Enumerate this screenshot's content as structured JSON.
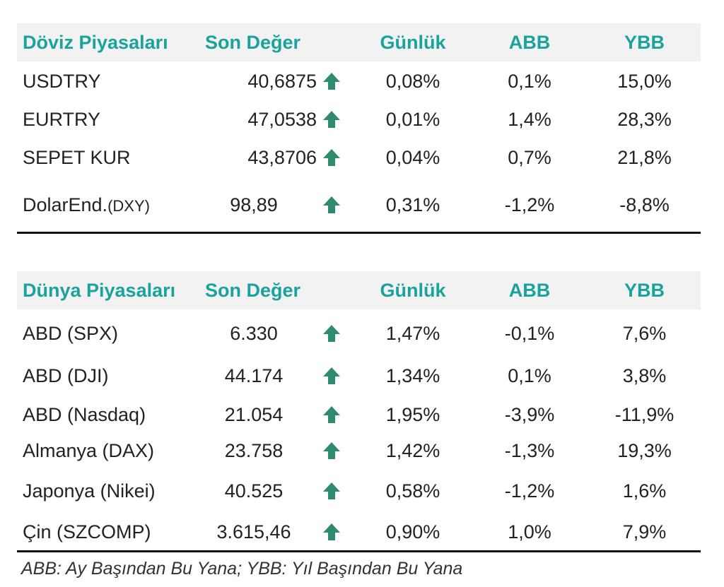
{
  "fx": {
    "headers": {
      "name": "Döviz Piyasaları",
      "value": "Son Değer",
      "daily": "Günlük",
      "abb": "ABB",
      "ybb": "YBB"
    },
    "rows": [
      {
        "name": "USDTRY",
        "value": "40,6875",
        "direction": "up",
        "daily": "0,08%",
        "abb": "0,1%",
        "ybb": "15,0%"
      },
      {
        "name": "EURTRY",
        "value": "47,0538",
        "direction": "up",
        "daily": "0,01%",
        "abb": "1,4%",
        "ybb": "28,3%"
      },
      {
        "name": "SEPET KUR",
        "value": "43,8706",
        "direction": "up",
        "daily": "0,04%",
        "abb": "0,7%",
        "ybb": "21,8%"
      },
      {
        "name": "DolarEnd.",
        "name_suffix": "(DXY)",
        "value": "98,89",
        "direction": "up",
        "daily": "0,31%",
        "abb": "-1,2%",
        "ybb": "-8,8%"
      }
    ]
  },
  "world": {
    "headers": {
      "name": "Dünya Piyasaları",
      "value": "Son Değer",
      "daily": "Günlük",
      "abb": "ABB",
      "ybb": "YBB"
    },
    "rows": [
      {
        "name": "ABD (SPX)",
        "value": "6.330",
        "direction": "up",
        "daily": "1,47%",
        "abb": "-0,1%",
        "ybb": "7,6%"
      },
      {
        "name": "ABD (DJI)",
        "value": "44.174",
        "direction": "up",
        "daily": "1,34%",
        "abb": "0,1%",
        "ybb": "3,8%"
      },
      {
        "name": "ABD (Nasdaq)",
        "value": "21.054",
        "direction": "up",
        "daily": "1,95%",
        "abb": "-3,9%",
        "ybb": "-11,9%"
      },
      {
        "name": "Almanya (DAX)",
        "value": "23.758",
        "direction": "up",
        "daily": "1,42%",
        "abb": "-1,3%",
        "ybb": "19,3%"
      },
      {
        "name": "Japonya (Nikei)",
        "value": "40.525",
        "direction": "up",
        "daily": "0,58%",
        "abb": "-1,2%",
        "ybb": "1,6%"
      },
      {
        "name": "Çin (SZCOMP)",
        "value": "3.615,46",
        "direction": "up",
        "daily": "0,90%",
        "abb": "1,0%",
        "ybb": "7,9%"
      }
    ]
  },
  "footnote": "ABB: Ay Başından Bu Yana; YBB: Yıl Başından Bu Yana",
  "colors": {
    "header_text": "#1aa39c",
    "header_bg": "#f2f2f2",
    "arrow_up": "#2e8b6e",
    "rule": "#111111"
  },
  "icons": {
    "up_arrow": "arrow-up-icon"
  }
}
